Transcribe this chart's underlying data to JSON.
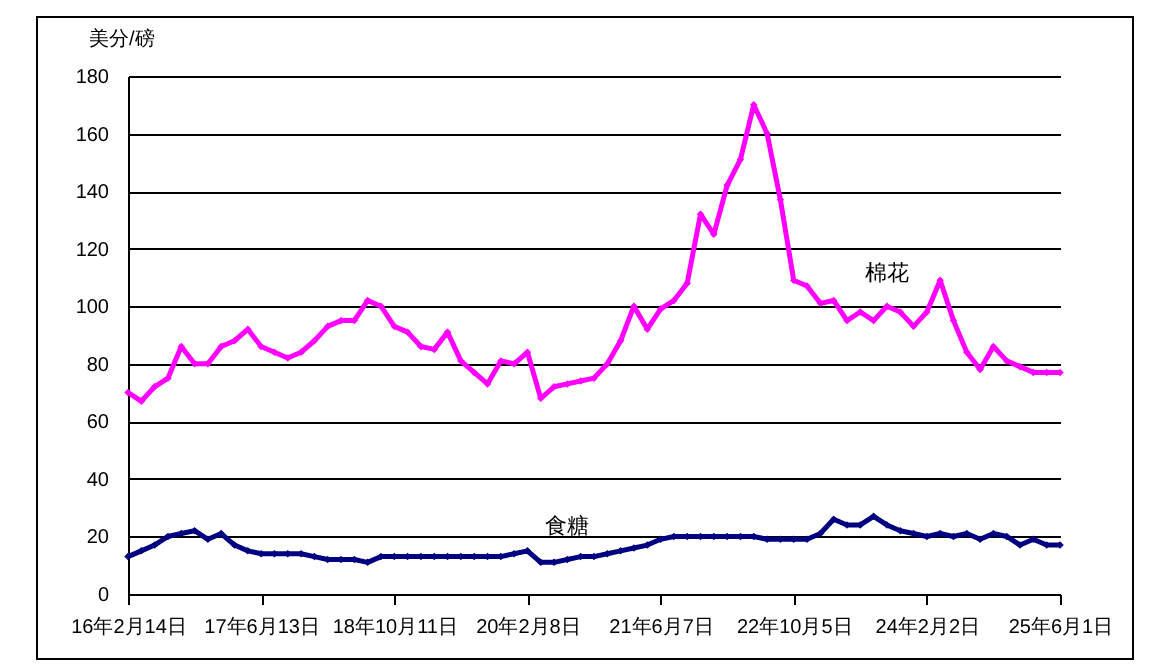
{
  "chart_data": {
    "type": "line",
    "ylabel": "美分/磅",
    "categories": [
      "16年2月14日",
      null,
      null,
      null,
      null,
      null,
      null,
      null,
      null,
      null,
      "17年6月13日",
      null,
      null,
      null,
      null,
      null,
      null,
      null,
      null,
      null,
      "18年10月11日",
      null,
      null,
      null,
      null,
      null,
      null,
      null,
      null,
      null,
      "20年2月8日",
      null,
      null,
      null,
      null,
      null,
      null,
      null,
      null,
      null,
      "21年6月7日",
      null,
      null,
      null,
      null,
      null,
      null,
      null,
      null,
      null,
      "22年10月5日",
      null,
      null,
      null,
      null,
      null,
      null,
      null,
      null,
      null,
      "24年2月2日",
      null,
      null,
      null,
      null,
      null,
      null,
      null,
      null,
      null,
      "25年6月1日"
    ],
    "series": [
      {
        "name": "棉花",
        "color": "#ff00ff",
        "values": [
          70,
          67,
          72,
          75,
          86,
          80,
          80,
          86,
          88,
          92,
          86,
          84,
          82,
          84,
          88,
          93,
          95,
          95,
          102,
          100,
          93,
          91,
          86,
          85,
          91,
          81,
          77,
          73,
          81,
          80,
          84,
          68,
          72,
          73,
          74,
          75,
          80,
          88,
          100,
          92,
          99,
          102,
          108,
          132,
          125,
          142,
          151,
          170,
          160,
          137,
          109,
          107,
          101,
          102,
          95,
          98,
          95,
          100,
          98,
          93,
          98,
          109,
          95,
          84,
          78,
          86,
          81,
          79,
          77,
          77,
          77
        ]
      },
      {
        "name": "食糖",
        "color": "#000080",
        "values": [
          13,
          15,
          17,
          20,
          21,
          22,
          19,
          21,
          17,
          15,
          14,
          14,
          14,
          14,
          13,
          12,
          12,
          12,
          11,
          13,
          13,
          13,
          13,
          13,
          13,
          13,
          13,
          13,
          13,
          14,
          15,
          11,
          11,
          12,
          13,
          13,
          14,
          15,
          16,
          17,
          19,
          20,
          20,
          20,
          20,
          20,
          20,
          20,
          19,
          19,
          19,
          19,
          21,
          26,
          24,
          24,
          27,
          24,
          22,
          21,
          20,
          21,
          20,
          21,
          19,
          21,
          20,
          17,
          19,
          17,
          17
        ]
      }
    ],
    "ylim": [
      0,
      180
    ],
    "yticks": [
      0,
      20,
      40,
      60,
      80,
      100,
      120,
      140,
      160,
      180
    ],
    "grid": "y",
    "legend": false,
    "marker": "diamond",
    "line_style": "solid"
  }
}
